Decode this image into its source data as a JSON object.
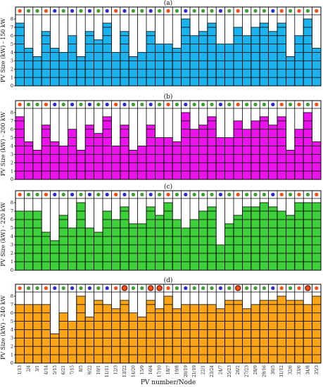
{
  "colors": {
    "blue": "#2b2bd6",
    "green": "#3aa12f",
    "red": "#ff4a12"
  },
  "shared": {
    "xlabel": "PV number/Node",
    "categories": [
      "1/13",
      "2/4",
      "3/1",
      "4/14",
      "5/15",
      "6/21",
      "7/15",
      "8/5",
      "9/22",
      "10/1",
      "11/11",
      "12/3",
      "13/22",
      "14/20",
      "15/9",
      "16/4",
      "17/10",
      "18/7",
      "19/8",
      "20/19",
      "21/19",
      "22/1",
      "23/24",
      "24/7",
      "25/23",
      "26/2",
      "27/23",
      "28/9",
      "29/16",
      "30/5",
      "31/12",
      "32/6",
      "33/6",
      "34/8",
      "35/3"
    ],
    "ylim": [
      0,
      8.5
    ],
    "yticks": [
      "0",
      "1",
      "2",
      "3",
      "4",
      "5",
      "6",
      "7",
      "8"
    ],
    "dots": [
      "red",
      "green",
      "green",
      "red",
      "blue",
      "green",
      "blue",
      "green",
      "blue",
      "green",
      "blue",
      "red",
      "blue",
      "green",
      "green",
      "blue",
      "green",
      "red",
      "green",
      "blue",
      "green",
      "green",
      "green",
      "blue",
      "green",
      "red",
      "green",
      "green",
      "green",
      "blue",
      "red",
      "green",
      "red",
      "green",
      "red"
    ]
  },
  "chart_data": [
    {
      "type": "bar",
      "title": "(a)",
      "ylabel": "PV Size (kW) - 150 kW",
      "color": "#1ab3ee",
      "values": [
        7.5,
        4.5,
        3.5,
        6.5,
        4.5,
        4,
        6,
        3.5,
        6.5,
        5.5,
        7.5,
        4,
        6.5,
        3.5,
        4,
        6.5,
        5,
        5,
        4.5,
        8,
        6,
        6.5,
        7.5,
        5,
        5,
        7,
        6,
        7,
        7.5,
        6.5,
        7.5,
        3.5,
        6,
        8,
        4.5
      ],
      "rings": []
    },
    {
      "type": "bar",
      "title": "(b)",
      "ylabel": "PV Size (kW) - 200 kW",
      "color": "#ec12ec",
      "values": [
        7.5,
        4.5,
        3.5,
        6.5,
        4.5,
        4,
        6,
        3.5,
        6.5,
        5.5,
        7.5,
        4,
        6.5,
        3.5,
        4,
        6.5,
        5,
        5,
        4.5,
        8,
        6,
        6.5,
        7.5,
        5,
        5,
        7,
        6,
        7,
        7.5,
        6.5,
        7.5,
        3.5,
        6,
        8,
        4.5
      ],
      "rings": []
    },
    {
      "type": "bar",
      "title": "(c)",
      "ylabel": "PV Size (kW) - 220 kW",
      "color": "#3ed03a",
      "values": [
        7,
        7,
        7,
        4.5,
        3.5,
        6.5,
        5,
        8,
        5,
        4.5,
        7,
        6,
        7.5,
        5.5,
        5.5,
        7.5,
        6.5,
        8,
        6,
        5,
        6,
        7,
        7.5,
        3,
        5.5,
        6.5,
        7.5,
        7.5,
        8,
        7.5,
        7,
        6.5,
        8,
        8,
        8
      ],
      "rings": []
    },
    {
      "type": "bar",
      "title": "(d)",
      "ylabel": "PV Size (kW) - 240 kW",
      "color": "#faa416",
      "values": [
        7,
        7,
        7,
        7,
        3.5,
        6,
        5,
        8,
        5.5,
        7.5,
        7,
        6.5,
        7.5,
        6,
        5.5,
        7.5,
        6.5,
        8,
        6.5,
        7,
        7,
        7,
        7,
        6.5,
        7.5,
        7.5,
        6.5,
        7,
        7.5,
        7.5,
        8,
        7.5,
        7.5,
        7,
        8
      ],
      "rings": [
        12,
        15,
        16,
        25,
        33
      ]
    }
  ]
}
